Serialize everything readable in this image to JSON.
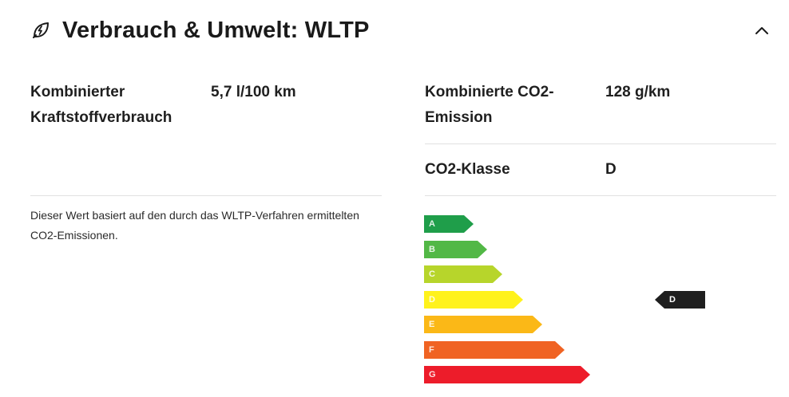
{
  "header": {
    "icon": "leaf-bolt-icon",
    "title": "Verbrauch & Umwelt: WLTP",
    "collapse_icon": "chevron-up-icon"
  },
  "left": {
    "label_line1": "Kombinierter",
    "label_line2": "Kraftstoffverbrauch",
    "value": "5,7 l/100 km",
    "note_line1": "Dieser Wert basiert auf den durch das WLTP-Verfahren ermittelten",
    "note_line2": "CO2-Emissionen."
  },
  "right": {
    "emission_label_line1": "Kombinierte CO2-",
    "emission_label_line2": "Emission",
    "emission_value": "128 g/km",
    "class_label": "CO2-Klasse",
    "class_value": "D"
  },
  "co2_scale": {
    "classes": [
      {
        "letter": "A",
        "color": "#1f9e4a"
      },
      {
        "letter": "B",
        "color": "#52b846"
      },
      {
        "letter": "C",
        "color": "#b7d52b"
      },
      {
        "letter": "D",
        "color": "#fff21c"
      },
      {
        "letter": "E",
        "color": "#fbb817"
      },
      {
        "letter": "F",
        "color": "#f06323"
      },
      {
        "letter": "G",
        "color": "#ed1c2a"
      }
    ],
    "current": "D",
    "marker_color": "#1f1f1f"
  }
}
